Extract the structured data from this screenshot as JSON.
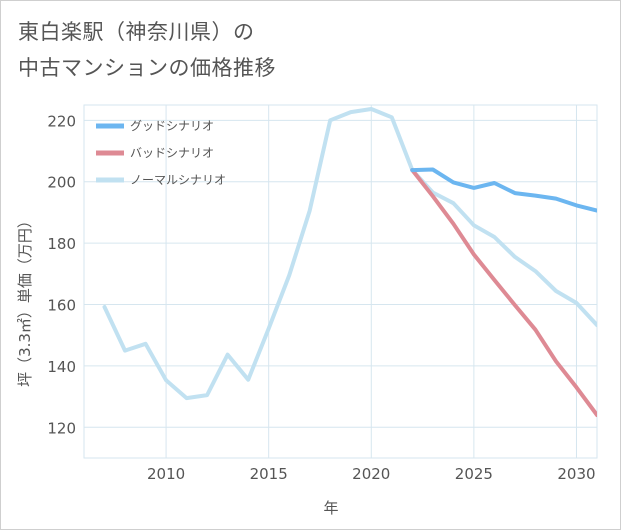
{
  "title": {
    "line1": "東白楽駅（神奈川県）の",
    "line2": "中古マンションの価格推移"
  },
  "chart_data": {
    "type": "line",
    "xlabel": "年",
    "ylabel": "坪（3.3㎡）単価（万円）",
    "xlim": [
      2006,
      2031
    ],
    "ylim": [
      110,
      225
    ],
    "x_ticks": [
      2010,
      2015,
      2020,
      2025,
      2030
    ],
    "y_ticks": [
      120,
      140,
      160,
      180,
      200,
      220
    ],
    "grid": true,
    "legend_position": "top-left",
    "series": [
      {
        "name": "グッドシナリオ",
        "color": "#6cb6f0",
        "x": [
          2022,
          2023,
          2024,
          2025,
          2026,
          2027,
          2028,
          2029,
          2030,
          2031
        ],
        "values": [
          203.8,
          204.0,
          199.8,
          198.0,
          199.6,
          196.3,
          195.5,
          194.5,
          192.3,
          190.6
        ]
      },
      {
        "name": "バッドシナリオ",
        "color": "#de8a94",
        "x": [
          2022,
          2023,
          2024,
          2025,
          2026,
          2027,
          2028,
          2029,
          2030,
          2031
        ],
        "values": [
          203.8,
          195.3,
          186.3,
          176.3,
          168.0,
          159.8,
          151.8,
          141.5,
          133.0,
          124.0
        ]
      },
      {
        "name": "ノーマルシナリオ",
        "color": "#c1e1f1",
        "x": [
          2007,
          2008,
          2009,
          2010,
          2011,
          2012,
          2013,
          2014,
          2015,
          2016,
          2017,
          2018,
          2019,
          2020,
          2021,
          2022,
          2023,
          2024,
          2025,
          2026,
          2027,
          2028,
          2029,
          2030,
          2031
        ],
        "values": [
          159.2,
          145.0,
          147.2,
          135.3,
          129.5,
          130.5,
          143.7,
          135.5,
          152.2,
          169.5,
          190.6,
          220.0,
          222.7,
          223.7,
          221.0,
          203.8,
          196.5,
          193.0,
          185.8,
          182.0,
          175.5,
          170.9,
          164.4,
          160.5,
          153.3
        ]
      }
    ]
  }
}
